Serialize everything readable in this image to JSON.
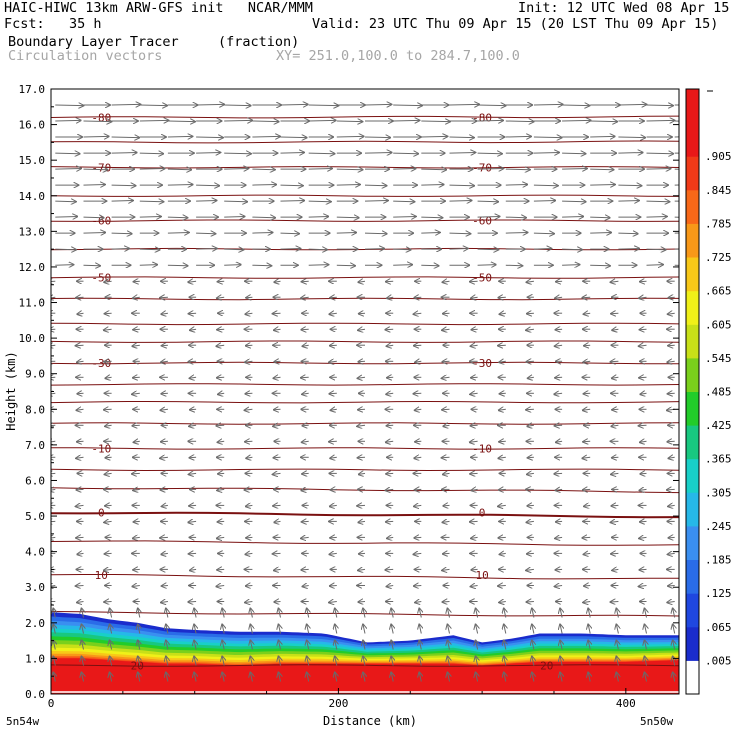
{
  "header": {
    "line1_left": "HAIC-HIWC 13km ARW-GFS init   NCAR/MMM",
    "line1_right": "Init: 12 UTC Wed 08 Apr 15",
    "line2_left": "Fcst:   35 h",
    "line2_right": "Valid: 23 UTC Thu 09 Apr 15 (20 LST Thu 09 Apr 15)",
    "line3_field": "Boundary Layer Tracer",
    "line3_units": "(fraction)",
    "line4_field": "Circulation vectors",
    "line4_xy": "XY= 251.0,100.0 to 284.7,100.0"
  },
  "chart_data": {
    "type": "heatmap",
    "xlabel": "Distance (km)",
    "ylabel": "Height (km)",
    "xlim": [
      0,
      437
    ],
    "ylim": [
      0,
      17
    ],
    "x_ticks": [
      "0",
      "200",
      "400"
    ],
    "x_tick_values": [
      0,
      200,
      400
    ],
    "x_end_labels": {
      "left": "5n54w",
      "right": "5n50w"
    },
    "y_ticks": [
      "0.0",
      "1.0",
      "2.0",
      "3.0",
      "4.0",
      "5.0",
      "6.0",
      "7.0",
      "8.0",
      "9.0",
      "10.0",
      "11.0",
      "12.0",
      "13.0",
      "14.0",
      "15.0",
      "16.0",
      "17.0"
    ],
    "y_tick_values": [
      0,
      1,
      2,
      3,
      4,
      5,
      6,
      7,
      8,
      9,
      10,
      11,
      12,
      13,
      14,
      15,
      16,
      17
    ],
    "colorbar": {
      "labels": [
        ".005",
        ".065",
        ".125",
        ".185",
        ".245",
        ".305",
        ".365",
        ".425",
        ".485",
        ".545",
        ".605",
        ".665",
        ".725",
        ".785",
        ".845",
        ".905"
      ],
      "colors": [
        "#ffffff",
        "#1a2ccc",
        "#1f47e0",
        "#2a6ce8",
        "#3a8ff0",
        "#26b8e8",
        "#18d0c8",
        "#18c880",
        "#22cc2a",
        "#7ad01c",
        "#c8e018",
        "#f0f018",
        "#f8c818",
        "#f89818",
        "#f86818",
        "#f03a18",
        "#e81818",
        "#e81818"
      ]
    },
    "tracer_field": {
      "description_units": "fraction",
      "x_km": [
        0,
        20,
        40,
        60,
        80,
        100,
        130,
        160,
        190,
        220,
        250,
        280,
        300,
        320,
        340,
        370,
        400,
        437
      ],
      "top_of_blue_km": [
        2.3,
        2.25,
        2.1,
        2.0,
        1.85,
        1.8,
        1.75,
        1.75,
        1.7,
        1.45,
        1.5,
        1.65,
        1.45,
        1.55,
        1.7,
        1.7,
        1.65,
        1.65
      ],
      "top_of_red_km": [
        1.0,
        1.0,
        0.95,
        0.9,
        0.85,
        0.85,
        0.8,
        0.85,
        0.85,
        0.85,
        0.85,
        0.85,
        0.8,
        0.85,
        0.9,
        0.9,
        0.9,
        0.95
      ]
    },
    "isotherms": {
      "color": "#7a1010",
      "labeled": [
        {
          "label": "-80",
          "z_km": 16.2
        },
        {
          "label": "-70",
          "z_km": 14.8
        },
        {
          "label": "-60",
          "z_km": 13.3
        },
        {
          "label": "-50",
          "z_km": 11.7
        },
        {
          "label": "-30",
          "z_km": 9.3
        },
        {
          "label": "-10",
          "z_km": 6.9
        },
        {
          "label": "0",
          "z_km": 5.1
        },
        {
          "label": "10",
          "z_km": 3.35
        },
        {
          "label": "20",
          "z_km": 0.8
        }
      ],
      "all_levels_km": [
        16.2,
        15.5,
        14.8,
        14.0,
        13.3,
        12.5,
        11.7,
        11.1,
        10.4,
        9.9,
        9.3,
        8.7,
        8.2,
        7.6,
        6.9,
        6.3,
        5.8,
        5.1,
        4.3,
        3.35,
        2.3,
        0.8
      ]
    },
    "vectors": {
      "color": "#6a6a6a",
      "description": "circulation vectors: strong westerly (rightward) aloft above 12 km, weak easterly (leftward) 3-12 km, near-vertical in boundary layer"
    }
  }
}
